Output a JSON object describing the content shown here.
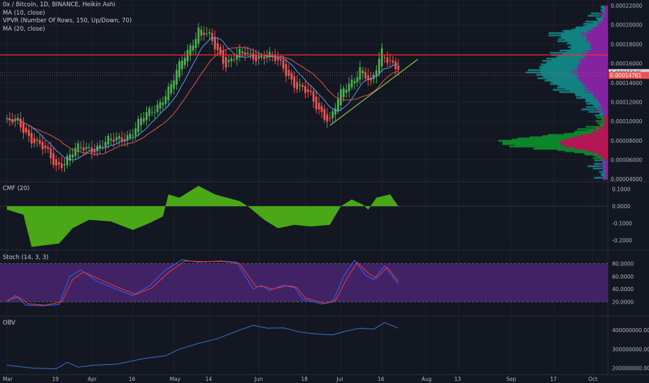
{
  "legend": {
    "symbol": "0x / Bitcoin, 1D, BINANCE, Heikin Ashi",
    "ma10": "MA (10, close)",
    "vpvr": "VPVR (Number Of Rows, 150, Up/Down, 70)",
    "ma20": "MA (20, close)"
  },
  "panes": {
    "cmf_title": "CMF (20)",
    "stoch_title": "Stoch (14, 3, 3)",
    "obv_title": "OBV"
  },
  "colors": {
    "background": "#131722",
    "up": "#26a69a",
    "down": "#ef5350",
    "up_body": "#4caf50",
    "ma10": "#5b9cf6",
    "ma20": "#e05858",
    "resistance": "#ff2a2a",
    "trendline": "#8bc34a",
    "cmf_fill": "#4caf18",
    "stoch_bg": "#4a2470",
    "stoch_k": "#2962ff",
    "stoch_d": "#e53935",
    "obv": "#3d6fd6",
    "vpvr_up": "#138b8b",
    "vpvr_down": "#8e24aa",
    "vpvr_va_up": "#0c8f2c",
    "vpvr_va_down": "#c2185b"
  },
  "chart_data": [
    {
      "type": "candlestick",
      "title": "0x / Bitcoin, 1D, BINANCE, Heikin Ashi",
      "x_ticks": [
        "Mar",
        "19",
        "Apr",
        "16",
        "May",
        "14",
        "Jun",
        "18",
        "Jul",
        "16",
        "Aug",
        "13",
        "Sep",
        "17",
        "Oct"
      ],
      "y_ticks": [
        "0.00022000",
        "0.00020000",
        "0.00018000",
        "0.00016000",
        "0.00014000",
        "0.00012000",
        "0.00010000",
        "0.00008000",
        "0.00006000",
        "0.00004000"
      ],
      "ylim": [
        3.8e-05,
        0.00022
      ],
      "resistance_level": 0.0001688,
      "price_labels": [
        "0.00015045",
        "0.00014761"
      ],
      "price_levels": [
        0.00015045,
        0.00014761
      ],
      "trendline": {
        "from": [
          "Jun 27",
          9.57e-05
        ],
        "to": [
          "Jul 22",
          0.0001585
        ]
      },
      "close_series": [
        {
          "date": "Mar 5",
          "value": 9.8e-05
        },
        {
          "date": "Mar 12",
          "value": 7.8e-05
        },
        {
          "date": "Mar 19",
          "value": 5.4e-05
        },
        {
          "date": "Mar 26",
          "value": 6.9e-05
        },
        {
          "date": "Apr 2",
          "value": 7.4e-05
        },
        {
          "date": "Apr 9",
          "value": 7.9e-05
        },
        {
          "date": "Apr 16",
          "value": 9e-05
        },
        {
          "date": "Apr 23",
          "value": 0.000112
        },
        {
          "date": "Apr 30",
          "value": 0.000135
        },
        {
          "date": "May 5",
          "value": 0.00017
        },
        {
          "date": "May 10",
          "value": 0.000195
        },
        {
          "date": "May 14",
          "value": 0.000185
        },
        {
          "date": "May 20",
          "value": 0.000162
        },
        {
          "date": "May 27",
          "value": 0.00017
        },
        {
          "date": "Jun 3",
          "value": 0.000168
        },
        {
          "date": "Jun 10",
          "value": 0.000158
        },
        {
          "date": "Jun 15",
          "value": 0.000135
        },
        {
          "date": "Jun 20",
          "value": 0.000125
        },
        {
          "date": "Jun 27",
          "value": 0.0001
        },
        {
          "date": "Jul 2",
          "value": 0.000133
        },
        {
          "date": "Jul 8",
          "value": 0.000155
        },
        {
          "date": "Jul 12",
          "value": 0.000135
        },
        {
          "date": "Jul 16",
          "value": 0.000175
        },
        {
          "date": "Jul 22",
          "value": 0.000152
        }
      ]
    },
    {
      "type": "area",
      "title": "CMF (20)",
      "y_ticks": [
        "0.1000",
        "0.0000",
        "-0.1000",
        "-0.2000"
      ],
      "ylim": [
        -0.25,
        0.14
      ],
      "series": [
        {
          "date": "Mar 1",
          "value": -0.02
        },
        {
          "date": "Mar 7",
          "value": -0.05
        },
        {
          "date": "Mar 10",
          "value": -0.24
        },
        {
          "date": "Mar 15",
          "value": -0.23
        },
        {
          "date": "Mar 20",
          "value": -0.22
        },
        {
          "date": "Mar 25",
          "value": -0.13
        },
        {
          "date": "Mar 31",
          "value": -0.08
        },
        {
          "date": "Apr 8",
          "value": -0.09
        },
        {
          "date": "Apr 16",
          "value": -0.14
        },
        {
          "date": "Apr 22",
          "value": -0.1
        },
        {
          "date": "Apr 27",
          "value": -0.06
        },
        {
          "date": "Apr 29",
          "value": 0.07
        },
        {
          "date": "May 3",
          "value": 0.05
        },
        {
          "date": "May 10",
          "value": 0.12
        },
        {
          "date": "May 16",
          "value": 0.07
        },
        {
          "date": "May 25",
          "value": 0.03
        },
        {
          "date": "May 28",
          "value": 0.0
        },
        {
          "date": "Jun 3",
          "value": -0.08
        },
        {
          "date": "Jun 8",
          "value": -0.13
        },
        {
          "date": "Jun 14",
          "value": -0.11
        },
        {
          "date": "Jun 20",
          "value": -0.12
        },
        {
          "date": "Jun 27",
          "value": -0.11
        },
        {
          "date": "Jul 1",
          "value": 0.0
        },
        {
          "date": "Jul 5",
          "value": 0.04
        },
        {
          "date": "Jul 9",
          "value": 0.01
        },
        {
          "date": "Jul 11",
          "value": -0.02
        },
        {
          "date": "Jul 14",
          "value": 0.05
        },
        {
          "date": "Jul 19",
          "value": 0.07
        },
        {
          "date": "Jul 22",
          "value": 0.0
        }
      ]
    },
    {
      "type": "line",
      "title": "Stoch (14, 3, 3)",
      "y_ticks": [
        "80.0000",
        "60.0000",
        "40.0000",
        "20.0000"
      ],
      "ylim": [
        0,
        100
      ],
      "band": [
        20,
        80
      ],
      "series": [
        {
          "name": "%K",
          "values": [
            {
              "date": "Mar 1",
              "value": 20
            },
            {
              "date": "Mar 4",
              "value": 30
            },
            {
              "date": "Mar 8",
              "value": 15
            },
            {
              "date": "Mar 14",
              "value": 14
            },
            {
              "date": "Mar 20",
              "value": 16
            },
            {
              "date": "Mar 24",
              "value": 60
            },
            {
              "date": "Mar 28",
              "value": 70
            },
            {
              "date": "Apr 3",
              "value": 52
            },
            {
              "date": "Apr 10",
              "value": 40
            },
            {
              "date": "Apr 16",
              "value": 30
            },
            {
              "date": "Apr 22",
              "value": 45
            },
            {
              "date": "Apr 28",
              "value": 70
            },
            {
              "date": "May 4",
              "value": 86
            },
            {
              "date": "May 10",
              "value": 82
            },
            {
              "date": "May 18",
              "value": 84
            },
            {
              "date": "May 24",
              "value": 82
            },
            {
              "date": "May 30",
              "value": 40
            },
            {
              "date": "Jun 2",
              "value": 46
            },
            {
              "date": "Jun 5",
              "value": 38
            },
            {
              "date": "Jun 10",
              "value": 46
            },
            {
              "date": "Jun 14",
              "value": 44
            },
            {
              "date": "Jun 17",
              "value": 24
            },
            {
              "date": "Jun 24",
              "value": 17
            },
            {
              "date": "Jun 28",
              "value": 20
            },
            {
              "date": "Jul 2",
              "value": 60
            },
            {
              "date": "Jul 6",
              "value": 85
            },
            {
              "date": "Jul 10",
              "value": 62
            },
            {
              "date": "Jul 13",
              "value": 55
            },
            {
              "date": "Jul 17",
              "value": 76
            },
            {
              "date": "Jul 22",
              "value": 48
            }
          ]
        },
        {
          "name": "%D",
          "values": [
            {
              "date": "Mar 1",
              "value": 22
            },
            {
              "date": "Mar 5",
              "value": 28
            },
            {
              "date": "Mar 9",
              "value": 17
            },
            {
              "date": "Mar 15",
              "value": 15
            },
            {
              "date": "Mar 21",
              "value": 20
            },
            {
              "date": "Mar 25",
              "value": 55
            },
            {
              "date": "Mar 29",
              "value": 67
            },
            {
              "date": "Apr 4",
              "value": 55
            },
            {
              "date": "Apr 11",
              "value": 42
            },
            {
              "date": "Apr 17",
              "value": 32
            },
            {
              "date": "Apr 23",
              "value": 42
            },
            {
              "date": "Apr 29",
              "value": 66
            },
            {
              "date": "May 5",
              "value": 84
            },
            {
              "date": "May 11",
              "value": 83
            },
            {
              "date": "May 19",
              "value": 83
            },
            {
              "date": "May 25",
              "value": 80
            },
            {
              "date": "May 31",
              "value": 44
            },
            {
              "date": "Jun 3",
              "value": 44
            },
            {
              "date": "Jun 6",
              "value": 40
            },
            {
              "date": "Jun 11",
              "value": 45
            },
            {
              "date": "Jun 15",
              "value": 42
            },
            {
              "date": "Jun 18",
              "value": 26
            },
            {
              "date": "Jun 25",
              "value": 18
            },
            {
              "date": "Jun 29",
              "value": 22
            },
            {
              "date": "Jul 3",
              "value": 55
            },
            {
              "date": "Jul 7",
              "value": 82
            },
            {
              "date": "Jul 11",
              "value": 65
            },
            {
              "date": "Jul 14",
              "value": 57
            },
            {
              "date": "Jul 18",
              "value": 74
            },
            {
              "date": "Jul 22",
              "value": 52
            }
          ]
        }
      ]
    },
    {
      "type": "line",
      "title": "OBV",
      "y_ticks": [
        "400000000.000",
        "300000000.000",
        "200000000.000"
      ],
      "ylim": [
        165000000,
        470000000
      ],
      "series": [
        {
          "date": "Mar 1",
          "value": 215000000
        },
        {
          "date": "Mar 10",
          "value": 200000000
        },
        {
          "date": "Mar 19",
          "value": 195000000
        },
        {
          "date": "Mar 23",
          "value": 230000000
        },
        {
          "date": "Mar 27",
          "value": 205000000
        },
        {
          "date": "Apr 2",
          "value": 215000000
        },
        {
          "date": "Apr 10",
          "value": 220000000
        },
        {
          "date": "Apr 20",
          "value": 250000000
        },
        {
          "date": "Apr 28",
          "value": 265000000
        },
        {
          "date": "May 3",
          "value": 300000000
        },
        {
          "date": "May 10",
          "value": 330000000
        },
        {
          "date": "May 17",
          "value": 355000000
        },
        {
          "date": "May 24",
          "value": 395000000
        },
        {
          "date": "May 30",
          "value": 425000000
        },
        {
          "date": "Jun 4",
          "value": 410000000
        },
        {
          "date": "Jun 10",
          "value": 412000000
        },
        {
          "date": "Jun 16",
          "value": 390000000
        },
        {
          "date": "Jun 22",
          "value": 380000000
        },
        {
          "date": "Jun 28",
          "value": 375000000
        },
        {
          "date": "Jul 3",
          "value": 395000000
        },
        {
          "date": "Jul 8",
          "value": 410000000
        },
        {
          "date": "Jul 13",
          "value": 405000000
        },
        {
          "date": "Jul 17",
          "value": 440000000
        },
        {
          "date": "Jul 22",
          "value": 410000000
        }
      ]
    }
  ]
}
